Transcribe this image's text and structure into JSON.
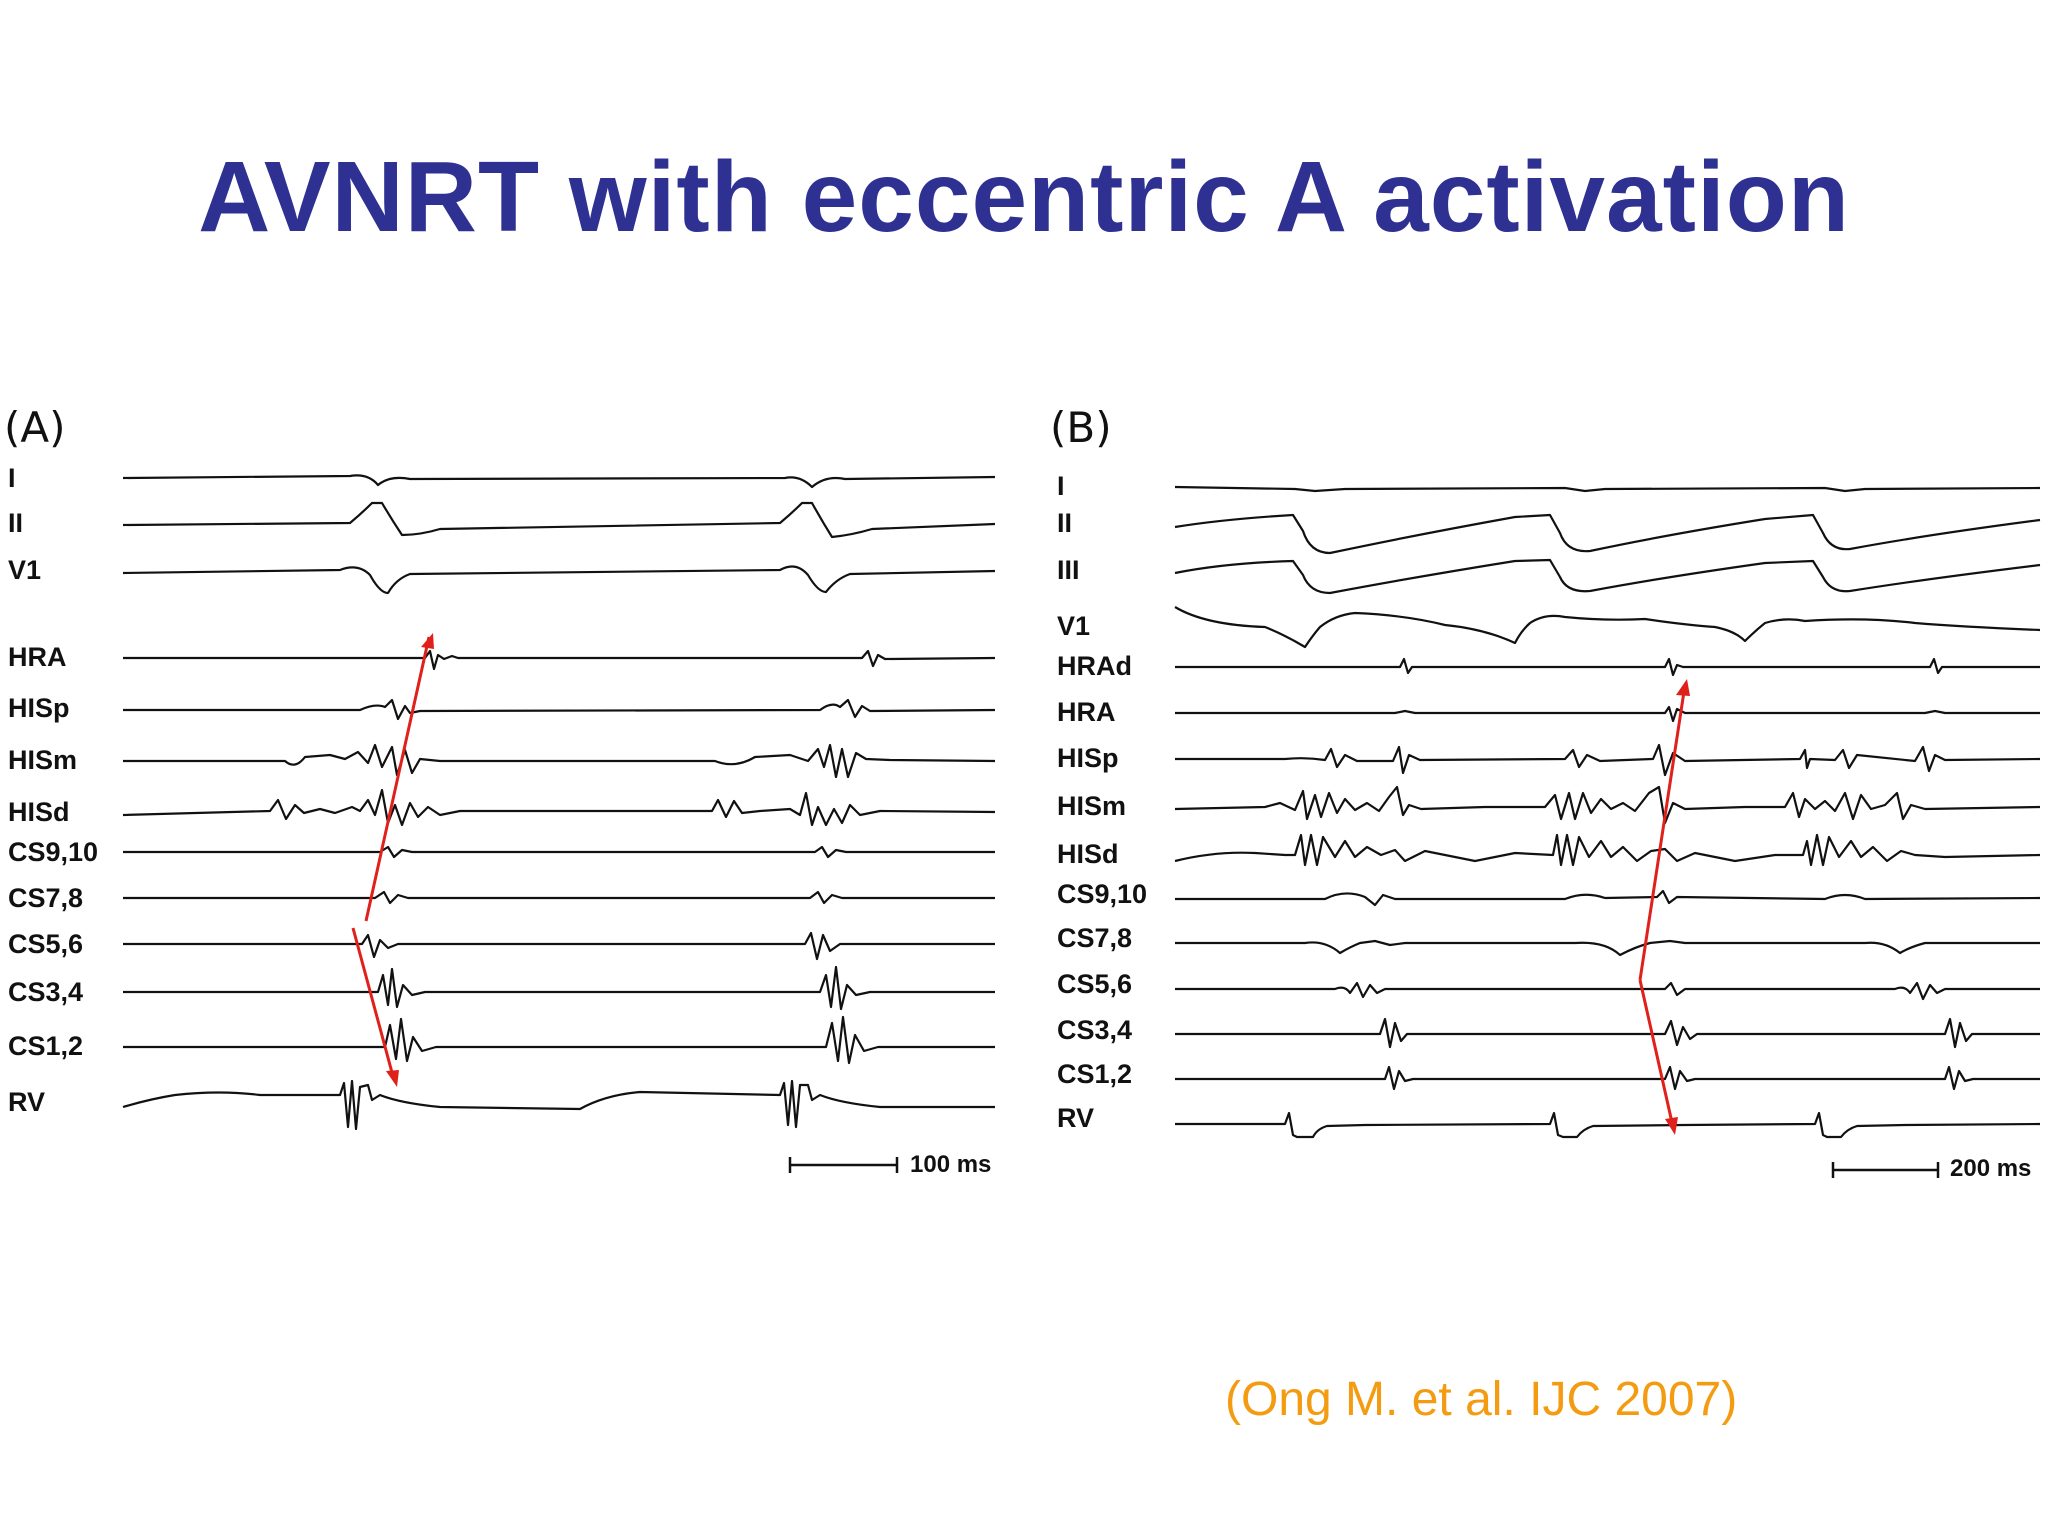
{
  "slide": {
    "title": "AVNRT with eccentric A activation",
    "citation": "(Ong M. et al. IJC 2007)"
  },
  "panel_a": {
    "label": "(A)",
    "leads": [
      "I",
      "II",
      "V1",
      "HRA",
      "HISp",
      "HISm",
      "HISd",
      "CS9,10",
      "CS7,8",
      "CS5,6",
      "CS3,4",
      "CS1,2",
      "RV"
    ],
    "scale_bar": "100 ms",
    "colors": {
      "trace": "#111111",
      "arrow": "#e0201b"
    }
  },
  "panel_b": {
    "label": "(B)",
    "leads": [
      "I",
      "II",
      "III",
      "V1",
      "HRAd",
      "HRA",
      "HISp",
      "HISm",
      "HISd",
      "CS9,10",
      "CS7,8",
      "CS5,6",
      "CS3,4",
      "CS1,2",
      "RV"
    ],
    "scale_bar": "200 ms",
    "colors": {
      "trace": "#111111",
      "arrow": "#e0201b"
    }
  }
}
